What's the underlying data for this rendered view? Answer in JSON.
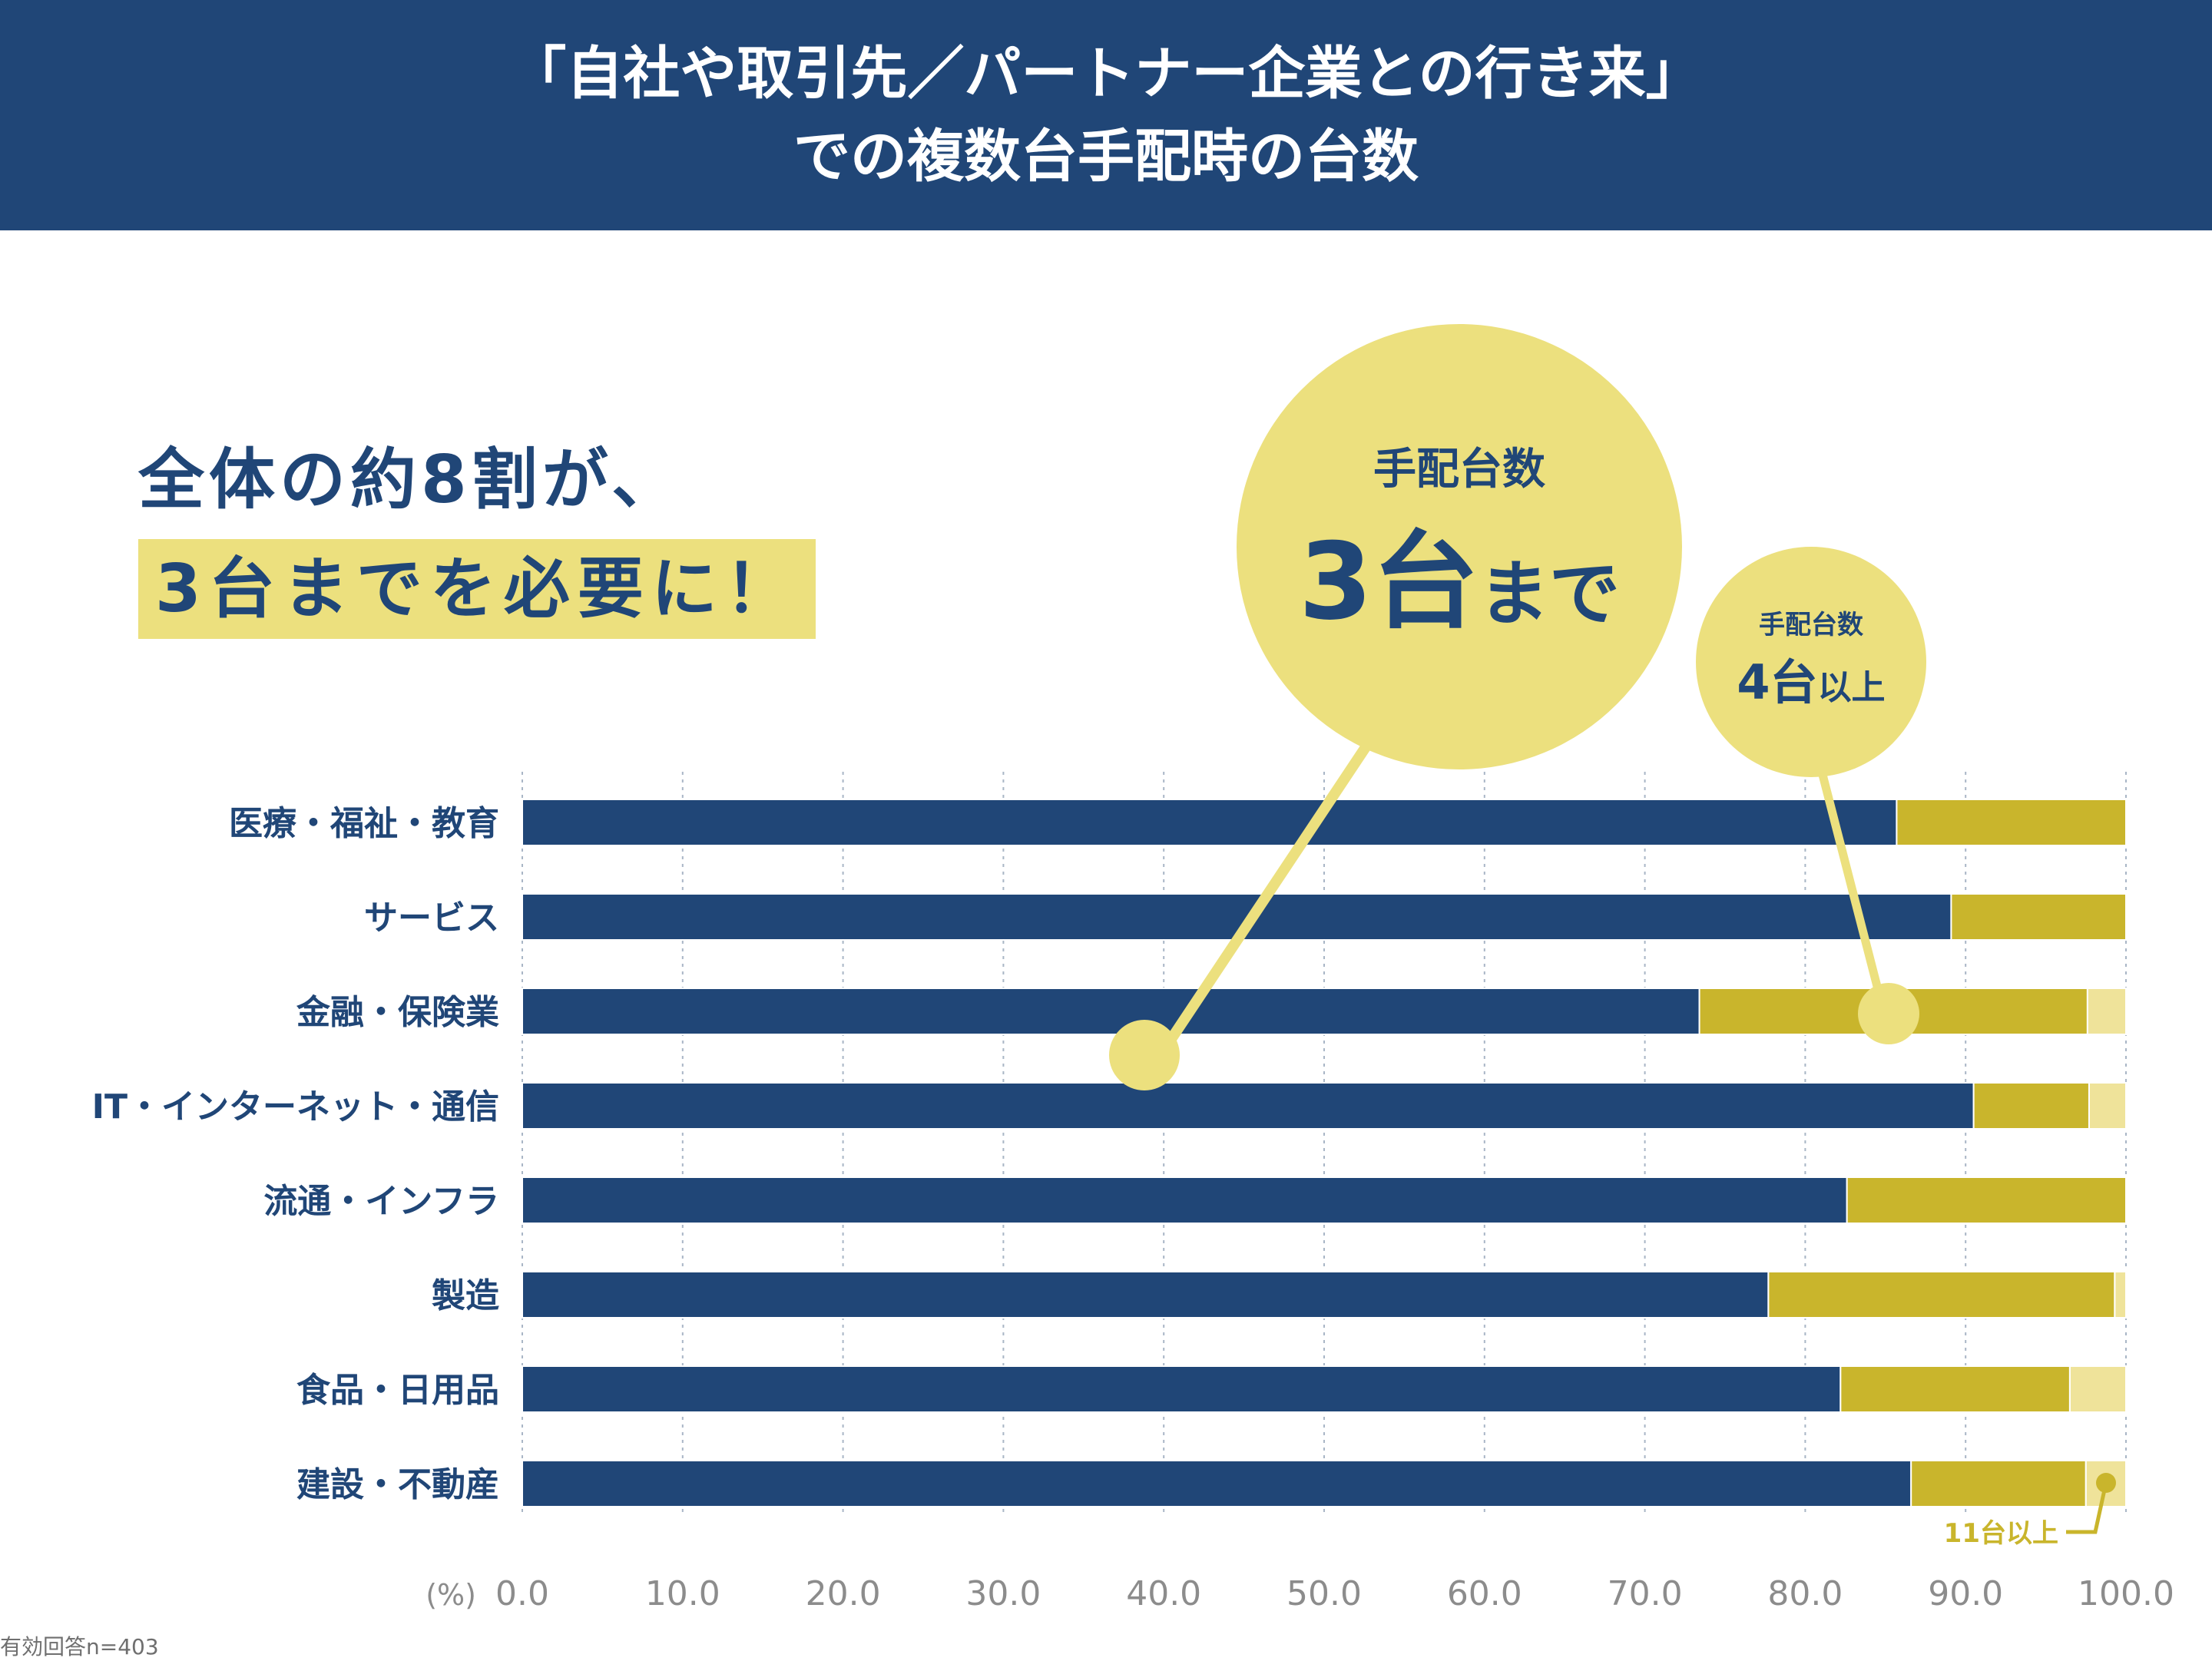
{
  "title": {
    "line1": "「自社や取引先／パートナー企業との行き来」",
    "line2": "での複数台手配時の台数"
  },
  "headline": {
    "line1": "全体の約8割が、",
    "line2": "3台までを必要に！"
  },
  "callouts": {
    "big": {
      "label": "手配台数",
      "number": "3台",
      "suffix": "まで"
    },
    "small": {
      "label": "手配台数",
      "number": "4台",
      "suffix": "以上"
    },
    "tiny": {
      "label": "11台以上"
    }
  },
  "note": "有効回答n=403",
  "colors": {
    "header_bg": "#204677",
    "navy": "#204677",
    "mustard": "#c9b52c",
    "pale": "#efe39a",
    "callout": "#ece07e",
    "tick_text": "#8c8c8c",
    "category_text": "#204677"
  },
  "chart_data": {
    "type": "bar",
    "orientation": "horizontal",
    "stacked": true,
    "categories": [
      "医療・福祉・教育",
      "サービス",
      "金融・保険業",
      "IT・インターネット・通信",
      "流通・インフラ",
      "製造",
      "食品・日用品",
      "建設・不動産"
    ],
    "series": [
      {
        "name": "3台まで",
        "values": [
          85.7,
          89.1,
          73.4,
          90.5,
          82.6,
          77.7,
          82.2,
          86.6
        ]
      },
      {
        "name": "4台以上",
        "values": [
          14.3,
          10.9,
          24.2,
          7.2,
          17.4,
          21.6,
          14.3,
          10.9
        ]
      },
      {
        "name": "11台以上",
        "values": [
          0,
          0,
          2.4,
          2.3,
          0,
          0.7,
          3.5,
          2.5
        ]
      }
    ],
    "xlim": [
      0,
      100
    ],
    "xticks": [
      "0.0",
      "10.0",
      "20.0",
      "30.0",
      "40.0",
      "50.0",
      "60.0",
      "70.0",
      "80.0",
      "90.0",
      "100.0"
    ],
    "xunit": "(%)",
    "grid": true,
    "legend": "callouts"
  }
}
